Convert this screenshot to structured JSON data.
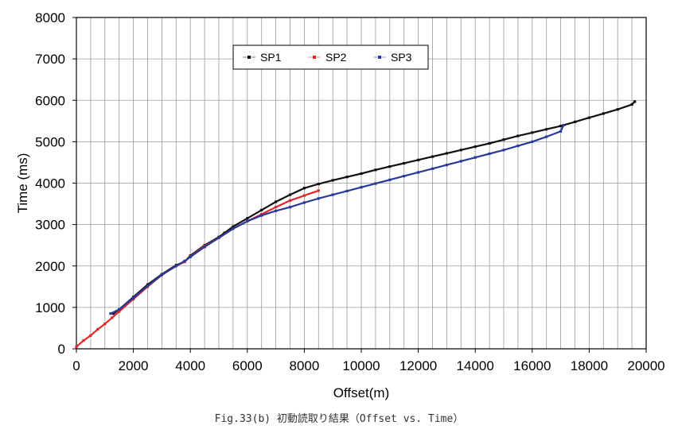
{
  "caption": "Fig.33(b)  初動読取り結果（Offset vs. Time）",
  "chart_data": {
    "type": "scatter",
    "xlabel": "Offset(m)",
    "ylabel": "Time (ms)",
    "xlim": [
      0,
      20000
    ],
    "ylim": [
      0,
      8000
    ],
    "x_ticks": [
      0,
      2000,
      4000,
      6000,
      8000,
      10000,
      12000,
      14000,
      16000,
      18000,
      20000
    ],
    "y_ticks": [
      0,
      1000,
      2000,
      3000,
      4000,
      5000,
      6000,
      7000,
      8000
    ],
    "x_minor_step": 500,
    "grid": true,
    "legend_position": "top-center",
    "series": [
      {
        "name": "SP1",
        "color": "#111111",
        "x": [
          1300,
          1500,
          2000,
          2500,
          3000,
          3500,
          3800,
          4000,
          4500,
          5000,
          5200,
          5500,
          6000,
          6500,
          7000,
          7500,
          8000,
          8500,
          9000,
          9500,
          10000,
          10500,
          11000,
          11500,
          12000,
          12500,
          13000,
          13500,
          14000,
          14500,
          15000,
          15500,
          16000,
          16500,
          17000,
          17500,
          18000,
          18500,
          19000,
          19500,
          19600
        ],
        "y": [
          850,
          950,
          1250,
          1550,
          1800,
          2020,
          2100,
          2250,
          2500,
          2700,
          2800,
          2950,
          3150,
          3350,
          3550,
          3720,
          3880,
          3980,
          4070,
          4150,
          4230,
          4320,
          4400,
          4480,
          4560,
          4640,
          4720,
          4800,
          4880,
          4960,
          5050,
          5140,
          5220,
          5300,
          5380,
          5480,
          5580,
          5680,
          5780,
          5900,
          5970
        ]
      },
      {
        "name": "SP2",
        "color": "#e02828",
        "x": [
          0,
          250,
          500,
          750,
          1000,
          1250,
          1500,
          2000,
          2500,
          3000,
          3500,
          3800,
          4000,
          4500,
          5000,
          5500,
          6000,
          6500,
          7000,
          7500,
          8000,
          8500
        ],
        "y": [
          50,
          200,
          320,
          470,
          600,
          750,
          900,
          1200,
          1500,
          1780,
          2000,
          2100,
          2230,
          2480,
          2680,
          2900,
          3080,
          3250,
          3420,
          3580,
          3700,
          3820
        ]
      },
      {
        "name": "SP3",
        "color": "#2a3a9a",
        "x": [
          1200,
          1500,
          2000,
          2500,
          3000,
          3500,
          3800,
          4000,
          4500,
          5000,
          5500,
          6000,
          6500,
          7000,
          7500,
          8000,
          8500,
          9000,
          9500,
          10000,
          10500,
          11000,
          11500,
          12000,
          12500,
          13000,
          13500,
          14000,
          14500,
          15000,
          15500,
          16000,
          16500,
          17000,
          17100
        ],
        "y": [
          850,
          950,
          1230,
          1520,
          1790,
          2000,
          2120,
          2220,
          2460,
          2680,
          2900,
          3080,
          3220,
          3330,
          3420,
          3530,
          3630,
          3720,
          3810,
          3900,
          3990,
          4080,
          4170,
          4260,
          4350,
          4440,
          4530,
          4620,
          4710,
          4800,
          4900,
          5000,
          5120,
          5250,
          5400
        ]
      }
    ]
  }
}
